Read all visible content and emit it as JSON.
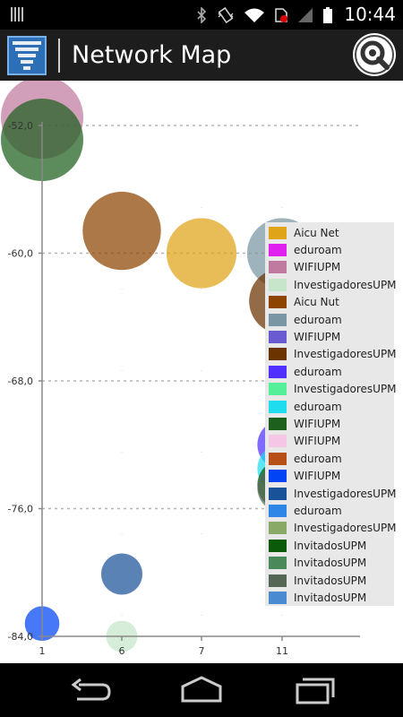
{
  "status": {
    "time": "10:44"
  },
  "app": {
    "title": "Network Map"
  },
  "colors": {
    "action_bar": "#1d1d1d",
    "app_icon": "#2d6fb6"
  },
  "chart_data": {
    "type": "scatter",
    "xlabel": "",
    "ylabel": "",
    "x_ticks": [
      "1",
      "6",
      "7",
      "11"
    ],
    "y_ticks": [
      "-52,0",
      "-60,0",
      "-68,0",
      "-76,0",
      "-84,0"
    ],
    "ylim": [
      -84,
      -52
    ],
    "grid": true,
    "legend_position": "top-right",
    "series": [
      {
        "name": "Aicu Net",
        "color": "#dfa418",
        "x": "7",
        "y": -60.0,
        "size": 0.85,
        "shown": true
      },
      {
        "name": "eduroam",
        "color": "#e020ee",
        "x": "1",
        "y": -51.8,
        "size": 1.0,
        "shown": false
      },
      {
        "name": "WIFIUPM",
        "color": "#c07aa0",
        "x": "1",
        "y": -51.5,
        "size": 1.0,
        "shown": true
      },
      {
        "name": "InvestigadoresUPM",
        "color": "#c6e6cc",
        "x": "6",
        "y": -84.0,
        "size": 0.38,
        "shown": true
      },
      {
        "name": "Aicu Nut",
        "color": "#8d4400",
        "x": "6",
        "y": -58.6,
        "size": 0.95,
        "shown": true
      },
      {
        "name": "eduroam",
        "color": "#7a96a4",
        "x": "11",
        "y": -60.0,
        "size": 0.85,
        "shown": true
      },
      {
        "name": "WIFIUPM",
        "color": "#6a5acf",
        "x": "11",
        "y": -63.0,
        "size": 0.8,
        "shown": false
      },
      {
        "name": "InvestigadoresUPM",
        "color": "#6a3300",
        "x": "11",
        "y": -63.0,
        "size": 0.8,
        "shown": true
      },
      {
        "name": "eduroam",
        "color": "#5030ff",
        "x": "11",
        "y": -72.0,
        "size": 0.6,
        "shown": true
      },
      {
        "name": "InvestigadoresUPM",
        "color": "#55ee99",
        "x": "11",
        "y": -72.5,
        "size": 0.5,
        "shown": false
      },
      {
        "name": "eduroam",
        "color": "#20ddee",
        "x": "11",
        "y": -73.5,
        "size": 0.6,
        "shown": true
      },
      {
        "name": "WIFIUPM",
        "color": "#1d5f1d",
        "x": "1",
        "y": -52.9,
        "size": 1.0,
        "shown": true
      },
      {
        "name": "WIFIUPM",
        "color": "#f6c6e6",
        "x": "11",
        "y": -60.0,
        "size": 0.5,
        "shown": false
      },
      {
        "name": "eduroam",
        "color": "#b75016",
        "x": "6",
        "y": -58.6,
        "size": 0.5,
        "shown": false
      },
      {
        "name": "WIFIUPM",
        "color": "#0044f5",
        "x": "1",
        "y": -83.2,
        "size": 0.42,
        "shown": true
      },
      {
        "name": "InvestigadoresUPM",
        "color": "#1a5299",
        "x": "6",
        "y": -80.1,
        "size": 0.5,
        "shown": true
      },
      {
        "name": "eduroam",
        "color": "#2e86e6",
        "x": "1",
        "y": -83.2,
        "size": 0.42,
        "shown": false
      },
      {
        "name": "InvestigadoresUPM",
        "color": "#88aa66",
        "x": "6",
        "y": -84.0,
        "size": 0.3,
        "shown": false
      },
      {
        "name": "InvitadosUPM",
        "color": "#0a5a0a",
        "x": "11",
        "y": -74.5,
        "size": 0.6,
        "shown": true
      },
      {
        "name": "InvitadosUPM",
        "color": "#4a8a5a",
        "x": "11",
        "y": -74.5,
        "size": 0.55,
        "shown": false
      },
      {
        "name": "InvitadosUPM",
        "color": "#556655",
        "x": "11",
        "y": -74.7,
        "size": 0.6,
        "shown": true
      },
      {
        "name": "InvitadosUPM",
        "color": "#4a8ad0",
        "x": "11",
        "y": -75.0,
        "size": 0.5,
        "shown": false
      }
    ]
  }
}
